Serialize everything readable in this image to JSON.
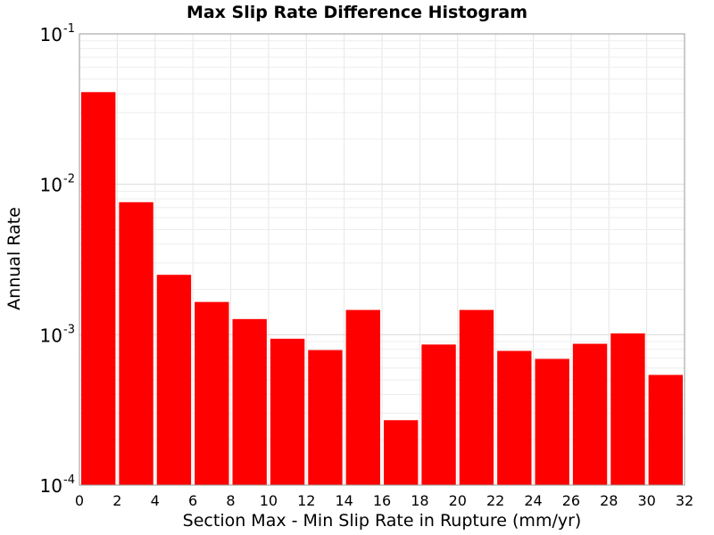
{
  "chart_data": {
    "type": "bar",
    "title": "Max Slip Rate Difference Histogram",
    "xlabel": "Section Max - Min Slip Rate in Rupture (mm/yr)",
    "ylabel": "Annual Rate",
    "xlim": [
      0,
      32
    ],
    "ylim": [
      0.0001,
      0.1
    ],
    "y_scale": "log",
    "grid": true,
    "bar_color": "#ff0000",
    "bin_width": 2,
    "x_ticks": [
      "0",
      "2",
      "4",
      "6",
      "8",
      "10",
      "12",
      "14",
      "16",
      "18",
      "20",
      "22",
      "24",
      "26",
      "28",
      "30",
      "32"
    ],
    "y_ticks": [
      {
        "base": "10",
        "exp": "-1",
        "value": 0.1
      },
      {
        "base": "10",
        "exp": "-2",
        "value": 0.01
      },
      {
        "base": "10",
        "exp": "-3",
        "value": 0.001
      },
      {
        "base": "10",
        "exp": "-4",
        "value": 0.0001
      }
    ],
    "bins": [
      {
        "x_start": 0,
        "value": 0.041
      },
      {
        "x_start": 2,
        "value": 0.0076
      },
      {
        "x_start": 4,
        "value": 0.0025
      },
      {
        "x_start": 6,
        "value": 0.00165
      },
      {
        "x_start": 8,
        "value": 0.00127
      },
      {
        "x_start": 10,
        "value": 0.00094
      },
      {
        "x_start": 12,
        "value": 0.00079
      },
      {
        "x_start": 14,
        "value": 0.00146
      },
      {
        "x_start": 16,
        "value": 0.00027
      },
      {
        "x_start": 18,
        "value": 0.00086
      },
      {
        "x_start": 20,
        "value": 0.00146
      },
      {
        "x_start": 22,
        "value": 0.00078
      },
      {
        "x_start": 24,
        "value": 0.00069
      },
      {
        "x_start": 26,
        "value": 0.00087
      },
      {
        "x_start": 28,
        "value": 0.00102
      },
      {
        "x_start": 30,
        "value": 0.00054
      }
    ]
  }
}
